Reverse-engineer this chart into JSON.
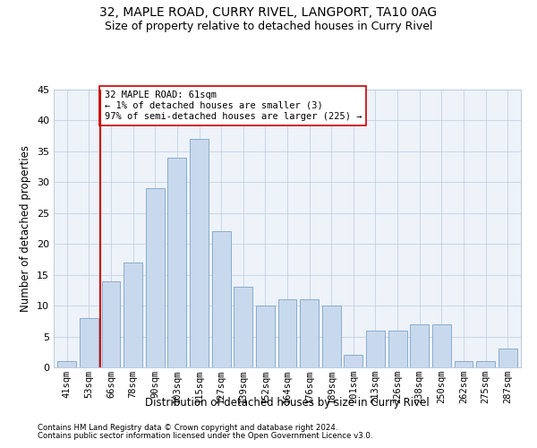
{
  "title": "32, MAPLE ROAD, CURRY RIVEL, LANGPORT, TA10 0AG",
  "subtitle": "Size of property relative to detached houses in Curry Rivel",
  "xlabel": "Distribution of detached houses by size in Curry Rivel",
  "ylabel": "Number of detached properties",
  "categories": [
    "41sqm",
    "53sqm",
    "66sqm",
    "78sqm",
    "90sqm",
    "103sqm",
    "115sqm",
    "127sqm",
    "139sqm",
    "152sqm",
    "164sqm",
    "176sqm",
    "189sqm",
    "201sqm",
    "213sqm",
    "226sqm",
    "238sqm",
    "250sqm",
    "262sqm",
    "275sqm",
    "287sqm"
  ],
  "values": [
    1,
    8,
    14,
    17,
    29,
    34,
    37,
    22,
    13,
    10,
    11,
    11,
    10,
    2,
    6,
    6,
    7,
    7,
    1,
    1,
    3
  ],
  "bar_color": "#c9d9ed",
  "bar_edge_color": "#7aa4c8",
  "vline_x": 1.5,
  "vline_color": "#cc0000",
  "annotation_text": "32 MAPLE ROAD: 61sqm\n← 1% of detached houses are smaller (3)\n97% of semi-detached houses are larger (225) →",
  "annotation_box_color": "#ffffff",
  "annotation_box_edge": "#cc0000",
  "ylim": [
    0,
    45
  ],
  "yticks": [
    0,
    5,
    10,
    15,
    20,
    25,
    30,
    35,
    40,
    45
  ],
  "background_color": "#eef2f9",
  "footer_line1": "Contains HM Land Registry data © Crown copyright and database right 2024.",
  "footer_line2": "Contains public sector information licensed under the Open Government Licence v3.0.",
  "title_fontsize": 10,
  "subtitle_fontsize": 9,
  "xlabel_fontsize": 8.5,
  "ylabel_fontsize": 8.5,
  "annot_fontsize": 7.5,
  "tick_fontsize": 7.5,
  "ytick_fontsize": 8,
  "footer_fontsize": 6.2
}
